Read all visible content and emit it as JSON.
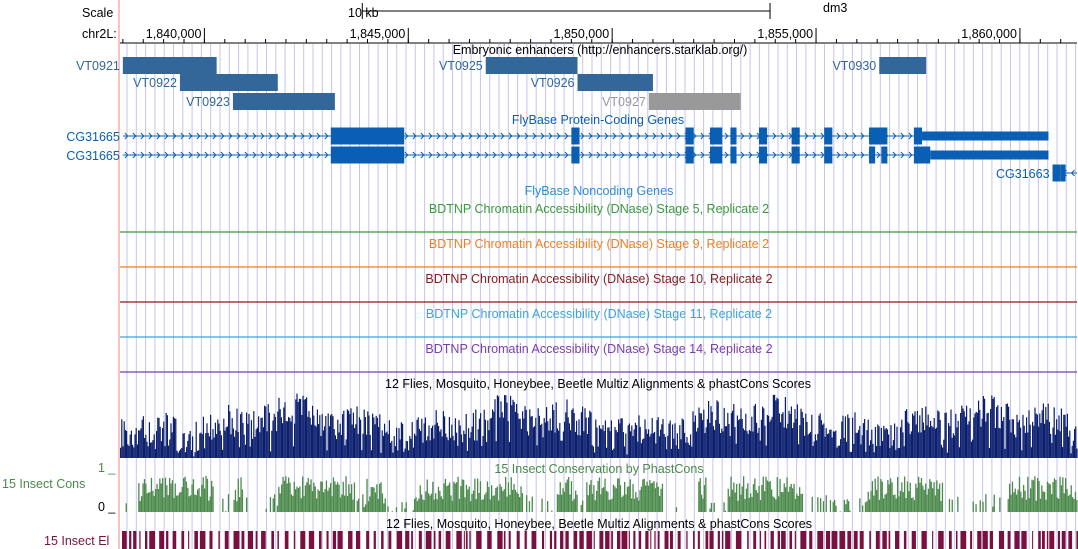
{
  "header": {
    "scale_label": "Scale",
    "scalebar_label": "10 kb",
    "assembly": "dm3",
    "chrom_label": "chr2L:"
  },
  "ruler": {
    "ticks": [
      {
        "pos": 1840000,
        "label": "1,840,000"
      },
      {
        "pos": 1845000,
        "label": "1,845,000"
      },
      {
        "pos": 1850000,
        "label": "1,850,000"
      },
      {
        "pos": 1855000,
        "label": "1,855,000"
      },
      {
        "pos": 1860000,
        "label": "1,860,000"
      }
    ],
    "scalebar_kb": 10
  },
  "view": {
    "start": 1837930,
    "end": 1861400
  },
  "tracks": {
    "enhancers": {
      "title": "Embryonic enhancers (http://enhancers.starklab.org/)",
      "color": "#336699",
      "gray_color": "#999999",
      "items": [
        {
          "name": "VT0921",
          "start": 1838000,
          "end": 1840300,
          "row": 0,
          "label_side": "left",
          "gray": false
        },
        {
          "name": "VT0922",
          "start": 1839400,
          "end": 1841800,
          "row": 1,
          "label_side": "left",
          "gray": false
        },
        {
          "name": "VT0923",
          "start": 1840700,
          "end": 1843200,
          "row": 2,
          "label_side": "left",
          "gray": false
        },
        {
          "name": "VT0925",
          "start": 1846900,
          "end": 1849150,
          "row": 0,
          "label_side": "left",
          "gray": false
        },
        {
          "name": "VT0926",
          "start": 1849150,
          "end": 1851000,
          "row": 1,
          "label_side": "left",
          "gray": false
        },
        {
          "name": "VT0927",
          "start": 1850900,
          "end": 1853150,
          "row": 2,
          "label_side": "left",
          "gray": true
        },
        {
          "name": "VT0930",
          "start": 1856550,
          "end": 1857700,
          "row": 0,
          "label_side": "left",
          "gray": false
        }
      ]
    },
    "protein_coding": {
      "title": "FlyBase Protein-Coding Genes",
      "color": "#0A5FB4",
      "genes": [
        {
          "name": "CG31665",
          "strand": "+",
          "start": 1838000,
          "end": 1860700,
          "row": 0,
          "label_side": "left",
          "exons": [
            [
              1843100,
              1844900,
              "thick"
            ],
            [
              1849000,
              1849200,
              "thick"
            ],
            [
              1851800,
              1852000,
              "thick"
            ],
            [
              1852400,
              1852700,
              "thick"
            ],
            [
              1852900,
              1853050,
              "thick"
            ],
            [
              1853600,
              1853800,
              "thick"
            ],
            [
              1854400,
              1854600,
              "thick"
            ],
            [
              1855200,
              1855400,
              "thick"
            ],
            [
              1856300,
              1856750,
              "thick"
            ],
            [
              1857400,
              1857600,
              "thick"
            ],
            [
              1857600,
              1860700,
              "thin"
            ]
          ]
        },
        {
          "name": "CG31665",
          "strand": "+",
          "start": 1838000,
          "end": 1860700,
          "row": 1,
          "label_side": "left",
          "exons": [
            [
              1843100,
              1844900,
              "thick"
            ],
            [
              1849000,
              1849200,
              "thick"
            ],
            [
              1851800,
              1852000,
              "thick"
            ],
            [
              1852400,
              1852700,
              "thick"
            ],
            [
              1852900,
              1853050,
              "thick"
            ],
            [
              1853600,
              1853800,
              "thick"
            ],
            [
              1854400,
              1854600,
              "thick"
            ],
            [
              1855200,
              1855400,
              "thick"
            ],
            [
              1856300,
              1856450,
              "thick"
            ],
            [
              1856600,
              1856750,
              "thick"
            ],
            [
              1857400,
              1857800,
              "thick"
            ],
            [
              1857800,
              1860700,
              "thin"
            ]
          ]
        },
        {
          "name": "CG31663",
          "strand": "-",
          "start": 1860800,
          "end": 1861400,
          "row": 2,
          "label_side": "left",
          "exons": [
            [
              1860800,
              1861000,
              "thick"
            ],
            [
              1861000,
              1861120,
              "thick"
            ]
          ]
        }
      ]
    },
    "noncoding": {
      "title": "FlyBase Noncoding Genes",
      "color": "#2E8BD8"
    },
    "dnase": [
      {
        "title": "BDTNP Chromatin Accessibility (DNase) Stage 5, Replicate 2",
        "color": "#3B9B3B"
      },
      {
        "title": "BDTNP Chromatin Accessibility (DNase) Stage 9, Replicate 2",
        "color": "#F07F1F"
      },
      {
        "title": "BDTNP Chromatin Accessibility (DNase) Stage 10, Replicate 2",
        "color": "#8B1A1A"
      },
      {
        "title": "BDTNP Chromatin Accessibility (DNase) Stage 11, Replicate 2",
        "color": "#3FA2D8"
      },
      {
        "title": "BDTNP Chromatin Accessibility (DNase) Stage 14, Replicate 2",
        "color": "#7B3FAA"
      }
    ],
    "multiz": {
      "title": "12 Flies, Mosquito, Honeybee, Beetle Multiz Alignments & phastCons Scores",
      "color": "#0B1F6E"
    },
    "insect_cons": {
      "label": "15 Insect Cons",
      "title": "15 Insect Conservation by PhastCons",
      "y_max_label": "1 _",
      "y_min_label": "0 _",
      "color": "#4B8A4B"
    },
    "insect_el": {
      "label": "15 Insect El",
      "title": "12 Flies, Mosquito, Honeybee, Beetle Multiz Alignments & phastCons Scores",
      "color": "#7A1040"
    }
  },
  "colors": {
    "guide": "#C4C4EC",
    "leftbar": "#F3B0B0",
    "text": "#000000"
  }
}
